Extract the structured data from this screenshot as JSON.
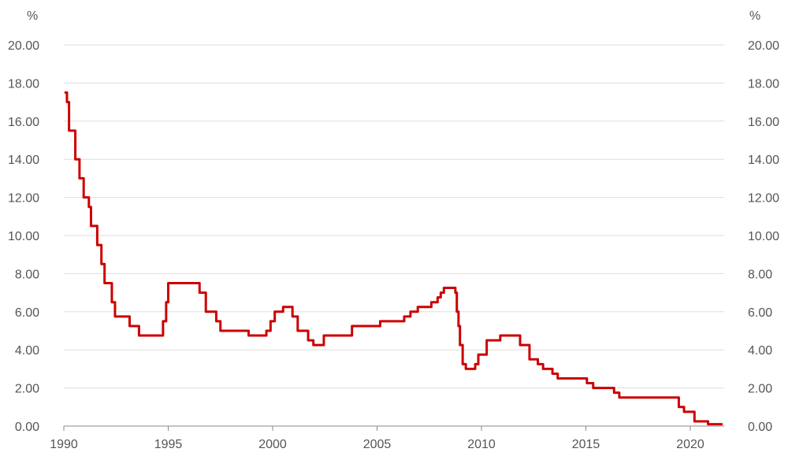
{
  "chart_data": {
    "type": "line",
    "title": "",
    "xlabel": "",
    "ylabel_left": "%",
    "ylabel_right": "%",
    "xlim": [
      1990.0,
      2021.6
    ],
    "ylim": [
      0,
      20
    ],
    "grid": true,
    "legend": "none",
    "x_ticks": [
      1990,
      1995,
      2000,
      2005,
      2010,
      2015,
      2020
    ],
    "x_tick_labels": [
      "1990",
      "1995",
      "2000",
      "2005",
      "2010",
      "2015",
      "2020"
    ],
    "y_ticks": [
      0,
      2,
      4,
      6,
      8,
      10,
      12,
      14,
      16,
      18,
      20
    ],
    "y_tick_labels": [
      "0.00",
      "2.00",
      "4.00",
      "6.00",
      "8.00",
      "10.00",
      "12.00",
      "14.00",
      "16.00",
      "18.00",
      "20.00"
    ],
    "line_style": "step",
    "series": [
      {
        "color": "#cc0000",
        "points": [
          [
            1990.08,
            17.5
          ],
          [
            1990.15,
            17.0
          ],
          [
            1990.25,
            15.5
          ],
          [
            1990.55,
            14.0
          ],
          [
            1990.75,
            13.0
          ],
          [
            1990.95,
            12.0
          ],
          [
            1991.2,
            11.5
          ],
          [
            1991.3,
            10.5
          ],
          [
            1991.6,
            9.5
          ],
          [
            1991.8,
            8.5
          ],
          [
            1991.95,
            7.5
          ],
          [
            1992.3,
            6.5
          ],
          [
            1992.45,
            5.75
          ],
          [
            1993.15,
            5.25
          ],
          [
            1993.6,
            4.75
          ],
          [
            1994.75,
            5.5
          ],
          [
            1994.9,
            6.5
          ],
          [
            1995.0,
            7.5
          ],
          [
            1996.5,
            7.0
          ],
          [
            1996.8,
            6.0
          ],
          [
            1997.3,
            5.5
          ],
          [
            1997.5,
            5.0
          ],
          [
            1998.85,
            4.75
          ],
          [
            1999.7,
            5.0
          ],
          [
            1999.9,
            5.5
          ],
          [
            2000.1,
            6.0
          ],
          [
            2000.5,
            6.25
          ],
          [
            2000.95,
            5.75
          ],
          [
            2001.2,
            5.0
          ],
          [
            2001.7,
            4.5
          ],
          [
            2001.95,
            4.25
          ],
          [
            2002.45,
            4.75
          ],
          [
            2003.8,
            5.25
          ],
          [
            2005.15,
            5.5
          ],
          [
            2006.3,
            5.75
          ],
          [
            2006.6,
            6.0
          ],
          [
            2006.95,
            6.25
          ],
          [
            2007.6,
            6.5
          ],
          [
            2007.9,
            6.75
          ],
          [
            2008.05,
            7.0
          ],
          [
            2008.2,
            7.25
          ],
          [
            2008.75,
            7.0
          ],
          [
            2008.82,
            6.0
          ],
          [
            2008.9,
            5.25
          ],
          [
            2008.97,
            4.25
          ],
          [
            2009.1,
            3.25
          ],
          [
            2009.25,
            3.0
          ],
          [
            2009.7,
            3.25
          ],
          [
            2009.85,
            3.75
          ],
          [
            2010.25,
            4.5
          ],
          [
            2010.9,
            4.75
          ],
          [
            2011.85,
            4.25
          ],
          [
            2012.3,
            3.5
          ],
          [
            2012.7,
            3.25
          ],
          [
            2012.95,
            3.0
          ],
          [
            2013.4,
            2.75
          ],
          [
            2013.65,
            2.5
          ],
          [
            2015.05,
            2.25
          ],
          [
            2015.35,
            2.0
          ],
          [
            2016.35,
            1.75
          ],
          [
            2016.6,
            1.5
          ],
          [
            2019.45,
            1.0
          ],
          [
            2019.7,
            0.75
          ],
          [
            2020.2,
            0.25
          ],
          [
            2020.85,
            0.1
          ]
        ],
        "end_x": 2021.5
      }
    ]
  }
}
